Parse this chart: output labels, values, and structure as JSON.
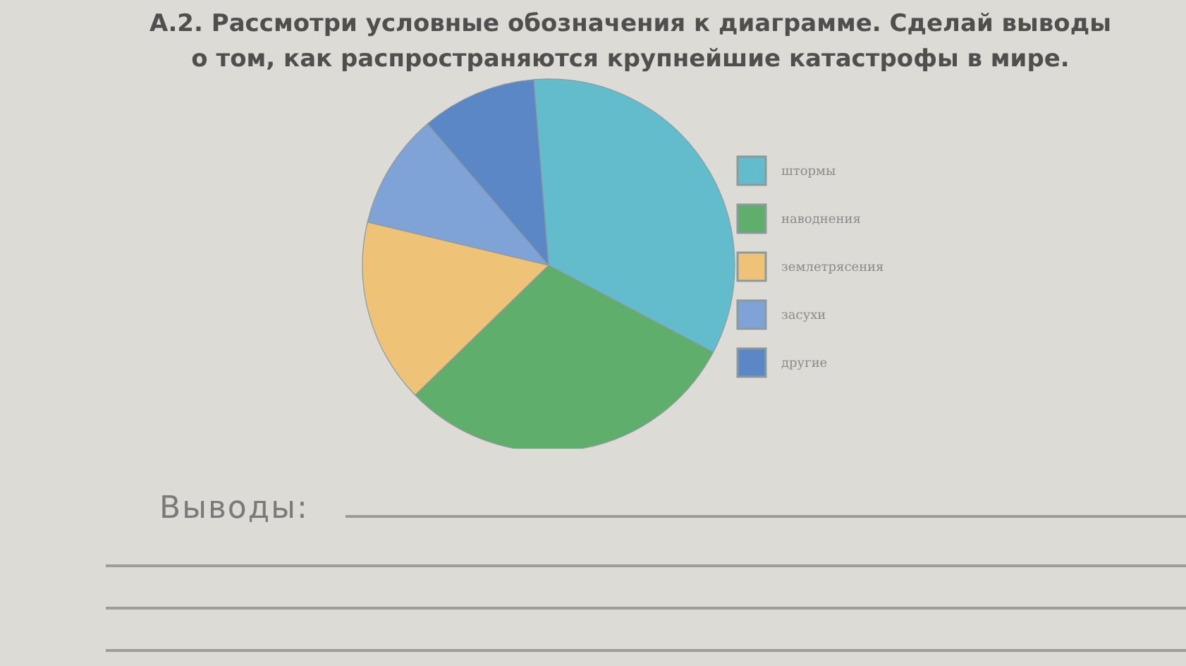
{
  "chart_data": {
    "type": "pie",
    "title": "А.2. Рассмотри условные обозначения к диаграмме. Сделай выводы о том, как распространяются крупнейшие катастрофы в мире.",
    "categories": [
      "штормы",
      "наводнения",
      "землетрясения",
      "засухи",
      "другие"
    ],
    "values": [
      34,
      30,
      16,
      10,
      10
    ],
    "colors": [
      "#62bccb",
      "#5fae6b",
      "#eec277",
      "#80a3d7",
      "#5b87c7"
    ],
    "legend": "right",
    "annotations": [
      "Выводы:"
    ]
  }
}
